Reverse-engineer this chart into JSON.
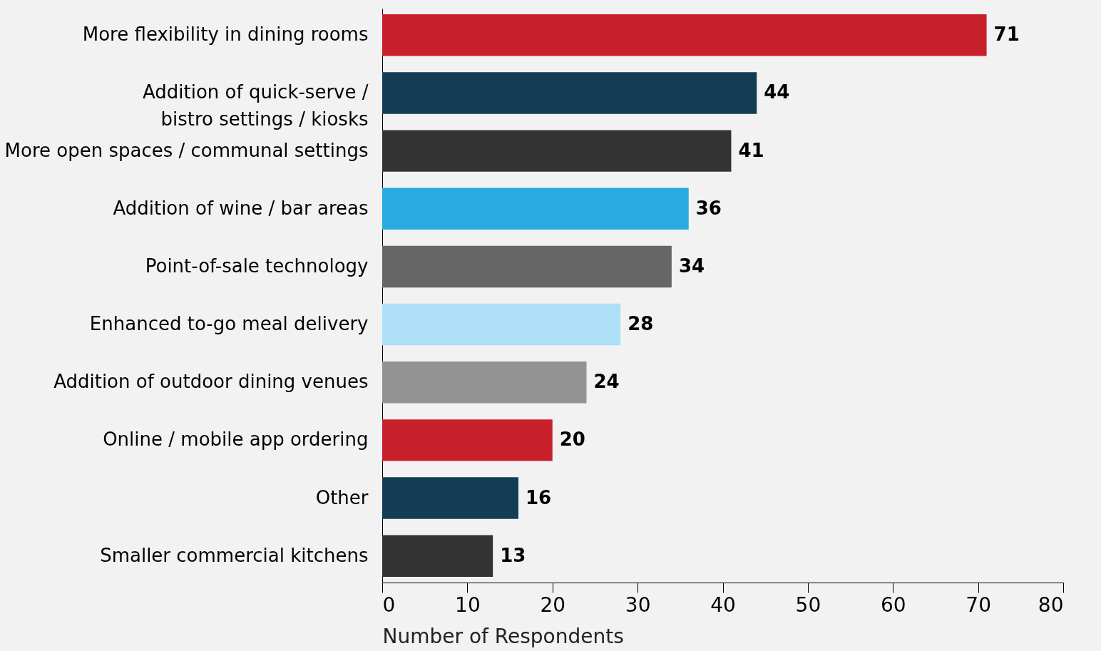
{
  "chart_data": {
    "type": "bar",
    "orientation": "horizontal",
    "xlabel": "Number of Respondents",
    "categories": [
      "More flexibility in dining rooms",
      "Addition of quick-serve /\nbistro settings / kiosks",
      "More open spaces / communal settings",
      "Addition of wine / bar areas",
      "Point-of-sale technology",
      "Enhanced to-go meal delivery",
      "Addition of outdoor dining venues",
      "Online / mobile app ordering",
      "Other",
      "Smaller commercial kitchens"
    ],
    "values": [
      71,
      44,
      41,
      36,
      34,
      28,
      24,
      20,
      16,
      13
    ],
    "colors": [
      "#c8202a",
      "#143d55",
      "#333333",
      "#29abe2",
      "#666666",
      "#aee0f7",
      "#939393",
      "#c8202a",
      "#143d55",
      "#333333"
    ],
    "xlim": [
      0,
      80
    ],
    "xticks": [
      0,
      10,
      20,
      30,
      40,
      50,
      60,
      70,
      80
    ],
    "data_labels": true,
    "grid": false,
    "legend": false
  }
}
